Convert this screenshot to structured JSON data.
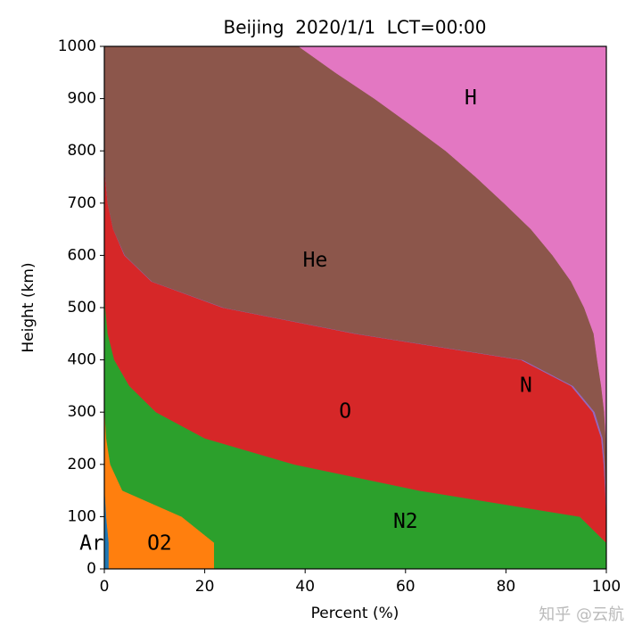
{
  "chart_data": {
    "type": "stacked_area_horizontal",
    "title": "Beijing  2020/1/1  LCT=00:00",
    "xlabel": "Percent (%)",
    "ylabel": "Height (km)",
    "watermark": "知乎 @云航",
    "y": [
      0,
      50,
      100,
      150,
      200,
      250,
      300,
      350,
      400,
      450,
      500,
      550,
      600,
      650,
      700,
      750,
      800,
      850,
      900,
      950,
      1000
    ],
    "series": [
      {
        "name": "Ar",
        "color": "#1f77b4",
        "values": [
          0.9,
          0.9,
          0.4,
          0.1,
          0,
          0,
          0,
          0,
          0,
          0,
          0,
          0,
          0,
          0,
          0,
          0,
          0,
          0,
          0,
          0,
          0
        ]
      },
      {
        "name": "O2",
        "color": "#ff7f0e",
        "values": [
          21,
          21,
          15,
          3.5,
          1.2,
          0.4,
          0.1,
          0,
          0,
          0,
          0,
          0,
          0,
          0,
          0,
          0,
          0,
          0,
          0,
          0,
          0
        ]
      },
      {
        "name": "N2",
        "color": "#2ca02c",
        "values": [
          78.1,
          78.1,
          79.3,
          59.1,
          36.6,
          19.6,
          10.2,
          5,
          2,
          0.7,
          0.2,
          0,
          0,
          0,
          0,
          0,
          0,
          0,
          0,
          0,
          0
        ]
      },
      {
        "name": "O",
        "color": "#d62728",
        "values": [
          0,
          0,
          5.3,
          37.1,
          61.7,
          79,
          87,
          88,
          81,
          49.3,
          23.4,
          9.4,
          4,
          1.8,
          0.7,
          0.2,
          0,
          0,
          0,
          0,
          0
        ]
      },
      {
        "name": "N",
        "color": "#9467bd",
        "values": [
          0,
          0,
          0,
          0.1,
          0.2,
          0.3,
          0.4,
          0.4,
          0.4,
          0.3,
          0.2,
          0.1,
          0.1,
          0,
          0,
          0,
          0,
          0,
          0,
          0,
          0
        ]
      },
      {
        "name": "He",
        "color": "#8c564b",
        "values": [
          0,
          0,
          0,
          0.1,
          0.3,
          0.6,
          1.9,
          5.6,
          14.8,
          47.2,
          71.8,
          83.5,
          85.2,
          83.2,
          78.9,
          73.8,
          68,
          61,
          53.8,
          46,
          38.7
        ]
      },
      {
        "name": "H",
        "color": "#e377c2",
        "values": [
          0,
          0,
          0,
          0,
          0,
          0.1,
          0.4,
          1,
          1.8,
          2.5,
          4.4,
          7,
          10.7,
          15,
          20.4,
          26,
          32,
          39,
          46.2,
          54,
          61.3
        ]
      }
    ],
    "xlim": [
      0,
      100
    ],
    "xticks": [
      0,
      20,
      40,
      60,
      80,
      100
    ],
    "ylim": [
      0,
      1000
    ],
    "yticks": [
      0,
      100,
      200,
      300,
      400,
      500,
      600,
      700,
      800,
      900,
      1000
    ]
  }
}
